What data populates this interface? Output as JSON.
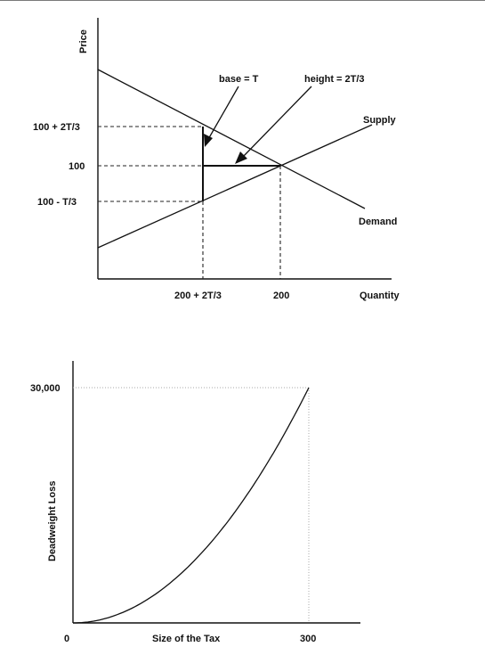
{
  "chart_data": [
    {
      "type": "line",
      "title": "",
      "ylabel": "Price",
      "xlabel": "Quantity",
      "series": [
        {
          "name": "Supply",
          "points": "upward-sloping line"
        },
        {
          "name": "Demand",
          "points": "downward-sloping line"
        }
      ],
      "y_ticks": [
        "100 + 2T/3",
        "100",
        "100 - T/3"
      ],
      "x_ticks": [
        "200 + 2T/3",
        "200"
      ],
      "annotations": [
        "base = T",
        "height = 2T/3"
      ]
    },
    {
      "type": "line",
      "title": "",
      "ylabel": "Deadweight Loss",
      "xlabel": "Size of the Tax",
      "x_ticks": [
        "0",
        "300"
      ],
      "y_ticks": [
        "30,000"
      ],
      "xlim": [
        0,
        300
      ],
      "ylim": [
        0,
        30000
      ],
      "series": [
        {
          "name": "",
          "x": [
            0,
            50,
            100,
            150,
            200,
            250,
            300
          ],
          "y": [
            0,
            833,
            3333,
            7500,
            13333,
            20833,
            30000
          ]
        }
      ]
    }
  ]
}
